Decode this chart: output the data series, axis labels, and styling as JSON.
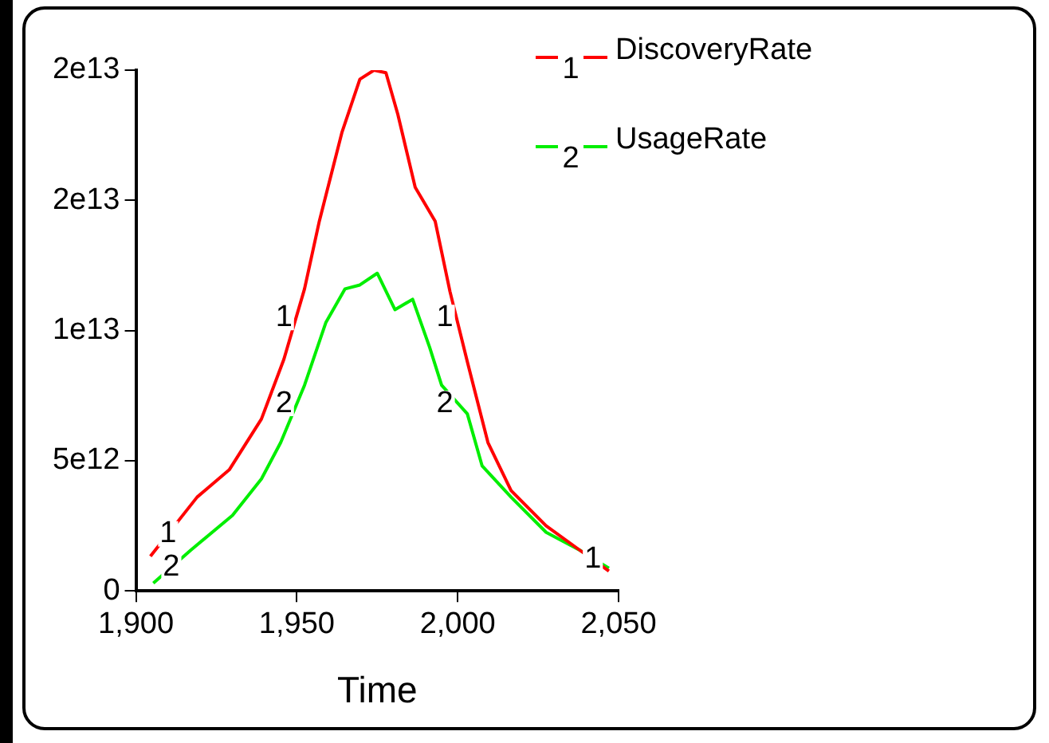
{
  "chart_data": {
    "type": "line",
    "xlabel": "Time",
    "legend": "top right",
    "grid": false,
    "marker": "none",
    "line_style": "solid",
    "xlim": [
      1900,
      2050
    ],
    "xticks": [
      {
        "value": 1900,
        "label": "1,900"
      },
      {
        "value": 1950,
        "label": "1,950"
      },
      {
        "value": 2000,
        "label": "2,000"
      },
      {
        "value": 2050,
        "label": "2,050"
      }
    ],
    "ylim": [
      0,
      20000000000000.0
    ],
    "yticks": [
      0,
      {
        "value": 5000000000000.0,
        "label": "5e12"
      },
      {
        "value": 10000000000000.0,
        "label": "1e13"
      },
      {
        "value": 15000000000000.0,
        "label": "2e13"
      },
      {
        "value": 20000000000000.0,
        "label": "2e13"
      }
    ],
    "annotations": [
      "1",
      "2",
      {
        "text": "1",
        "x": 1910,
        "y": 2190000000000.0
      },
      {
        "text": "2",
        "x": 1911,
        "y": 910000000000.0
      },
      {
        "text": "1",
        "x": 1946,
        "y": 10500000000000.0
      },
      {
        "text": "2",
        "x": 1946,
        "y": 7200000000000.0
      },
      {
        "text": "1",
        "x": 1996,
        "y": 10500000000000.0
      },
      {
        "text": "2",
        "x": 1996,
        "y": 7200000000000.0
      },
      {
        "text": "1",
        "x": 2042,
        "y": 1200000000000.0
      }
    ],
    "series": [
      {
        "name": "DiscoveryRate",
        "color": "#ff0000",
        "x": [
          1904.5,
          1919,
          1929,
          1939,
          1946,
          1952.4,
          1957,
          1964,
          1969.6,
          1974,
          1977.7,
          1981.4,
          1986.8,
          1993,
          1997.6,
          2003,
          2009.4,
          2016.6,
          2027.5,
          2038,
          2047
        ],
        "values": [
          1330000000000.0,
          3600000000000.0,
          4650000000000.0,
          6600000000000.0,
          8900000000000.0,
          11600000000000.0,
          14200000000000.0,
          17600000000000.0,
          19650000000000.0,
          20000000000000.0,
          19900000000000.0,
          18300000000000.0,
          15500000000000.0,
          14200000000000.0,
          11500000000000.0,
          8800000000000.0,
          5700000000000.0,
          3850000000000.0,
          2500000000000.0,
          1560000000000.0,
          760000000000.0
        ]
      },
      {
        "name": "UsageRate",
        "color": "#00ee00",
        "x": [
          1905.4,
          1917,
          1930,
          1939,
          1945,
          1952.4,
          1959,
          1965,
          1969.6,
          1975,
          1980.5,
          1986,
          1991.3,
          1995,
          2003,
          2007.6,
          2016.6,
          2027.5,
          2038,
          2047
        ],
        "values": [
          300000000000.0,
          1560000000000.0,
          2900000000000.0,
          4300000000000.0,
          5700000000000.0,
          7900000000000.0,
          10300000000000.0,
          11600000000000.0,
          11750000000000.0,
          12200000000000.0,
          10800000000000.0,
          11200000000000.0,
          9350000000000.0,
          7900000000000.0,
          6800000000000.0,
          4800000000000.0,
          3600000000000.0,
          2250000000000.0,
          1560000000000.0,
          870000000000.0
        ]
      }
    ]
  }
}
